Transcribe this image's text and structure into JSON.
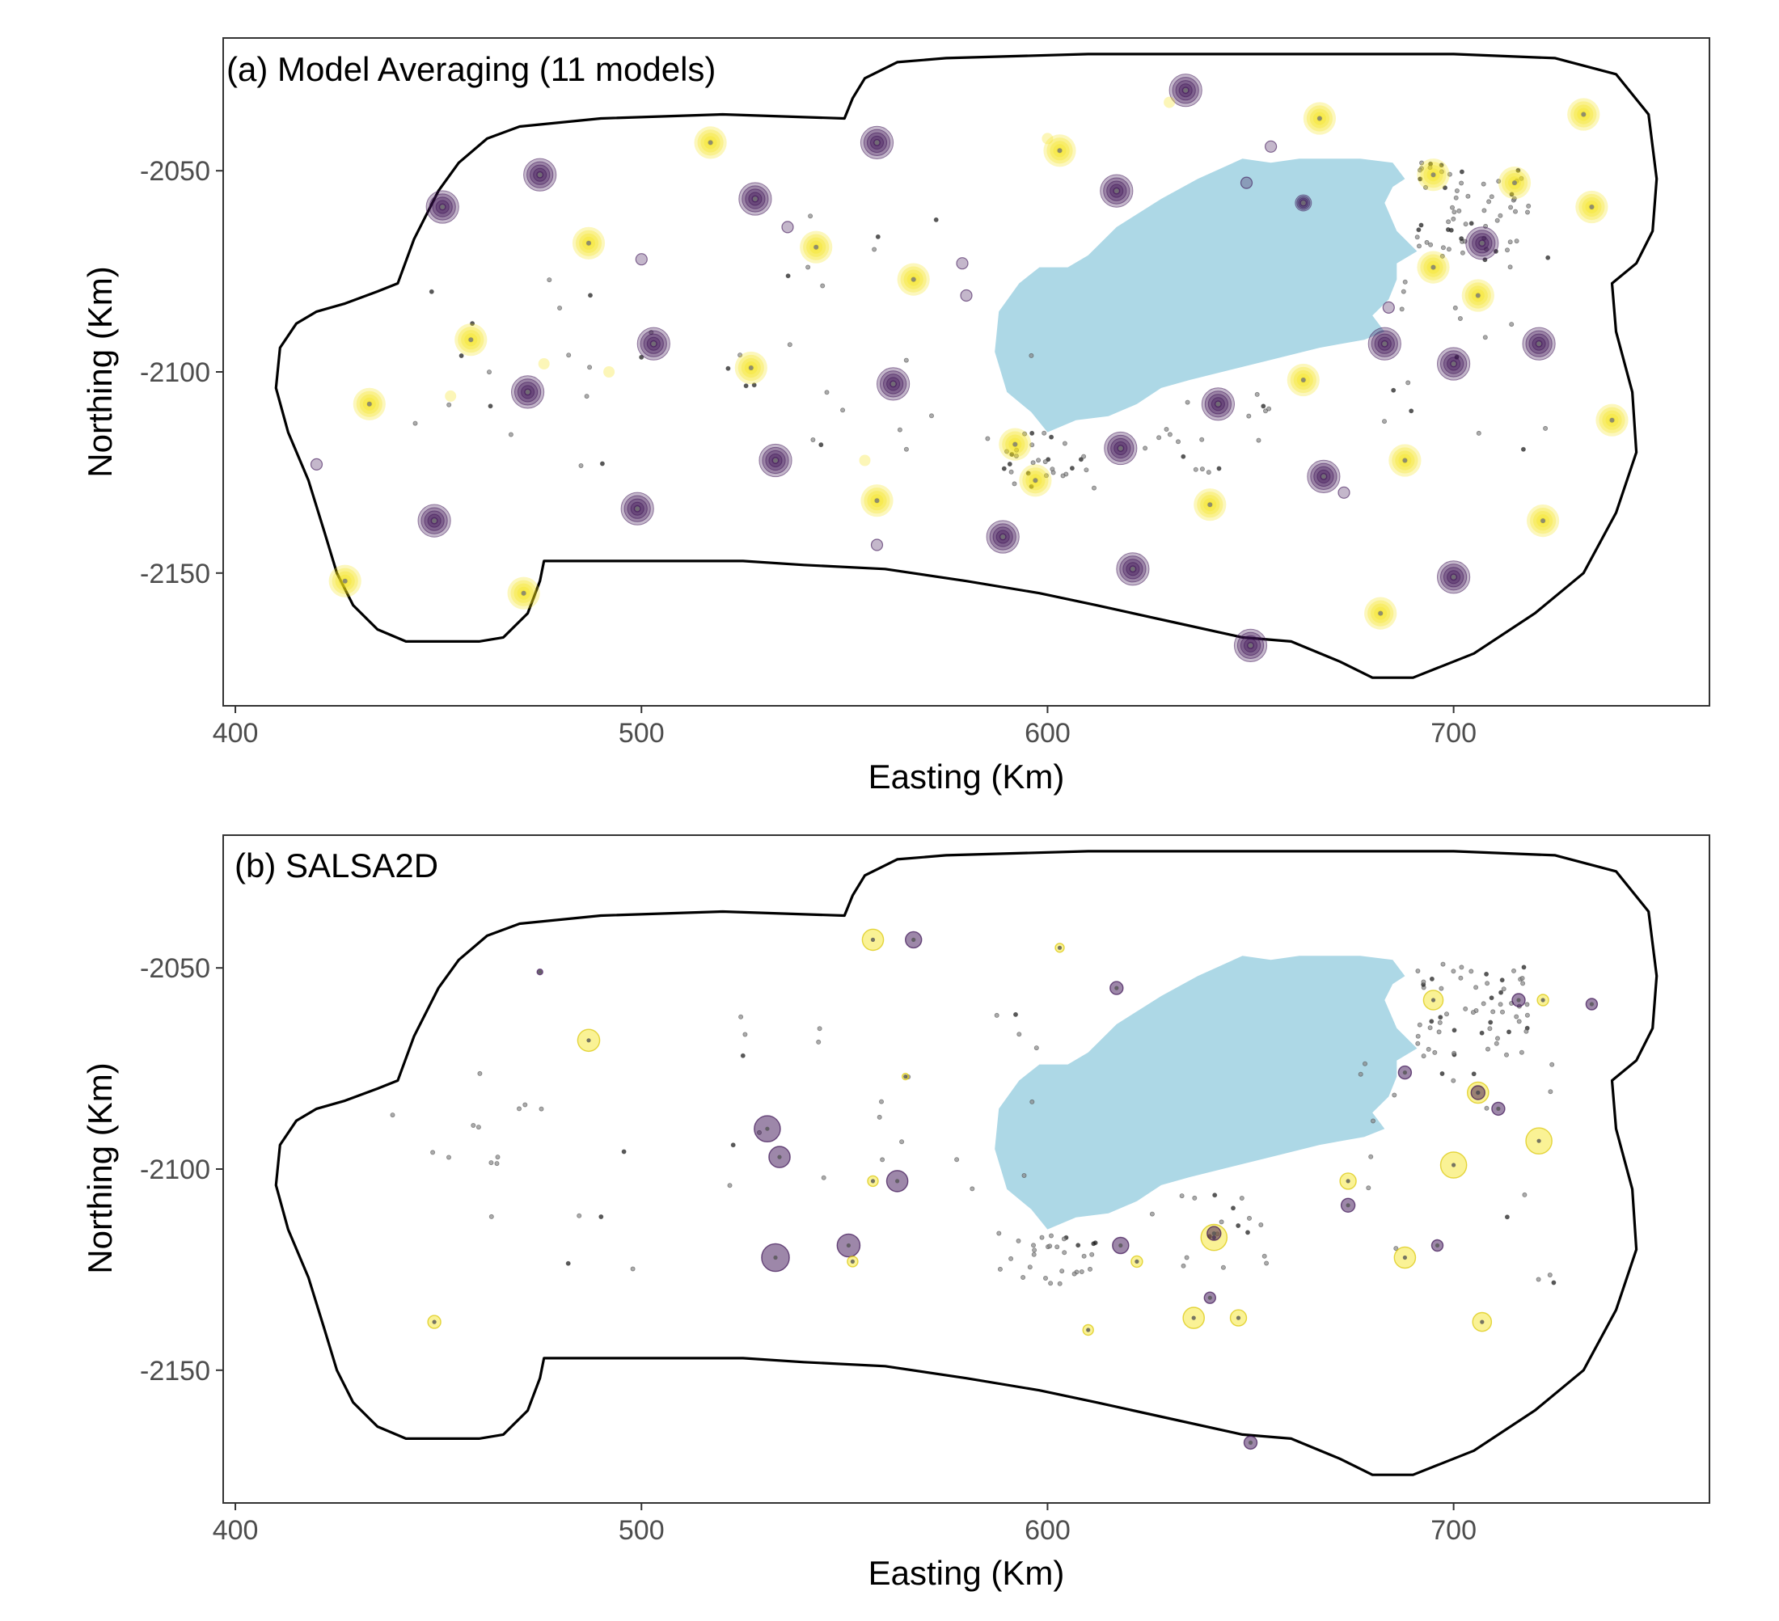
{
  "chart_data": [
    {
      "type": "scatter",
      "title": "(a) Model Averaging (11 models)",
      "xlabel": "Easting (Km)",
      "ylabel": "Northing (Km)",
      "xlim": [
        397,
        763
      ],
      "ylim": [
        -2183,
        -2017
      ],
      "xticks": [
        "400",
        "500",
        "600",
        "700"
      ],
      "yticks": [
        "-2050",
        "-2100",
        "-2150"
      ],
      "grid": false,
      "legend": "none",
      "colors": {
        "low": "#3b0f53",
        "high": "#f5e213",
        "boundary": "#000000",
        "water": "#add8e6",
        "obs": "#333333"
      },
      "boundary": [
        [
          442,
          -2167
        ],
        [
          435,
          -2164
        ],
        [
          429,
          -2158
        ],
        [
          425,
          -2150
        ],
        [
          422,
          -2140
        ],
        [
          418,
          -2127
        ],
        [
          413,
          -2115
        ],
        [
          410,
          -2104
        ],
        [
          411,
          -2094
        ],
        [
          415,
          -2088
        ],
        [
          420,
          -2085
        ],
        [
          427,
          -2083
        ],
        [
          435,
          -2080
        ],
        [
          440,
          -2078
        ],
        [
          444,
          -2067
        ],
        [
          450,
          -2055
        ],
        [
          455,
          -2048
        ],
        [
          462,
          -2042
        ],
        [
          470,
          -2039
        ],
        [
          490,
          -2037
        ],
        [
          520,
          -2036
        ],
        [
          550,
          -2037
        ],
        [
          552,
          -2032
        ],
        [
          555,
          -2027
        ],
        [
          563,
          -2023
        ],
        [
          575,
          -2022
        ],
        [
          610,
          -2021
        ],
        [
          660,
          -2021
        ],
        [
          700,
          -2021
        ],
        [
          725,
          -2022
        ],
        [
          740,
          -2026
        ],
        [
          748,
          -2036
        ],
        [
          750,
          -2052
        ],
        [
          749,
          -2065
        ],
        [
          745,
          -2073
        ],
        [
          739,
          -2078
        ],
        [
          740,
          -2090
        ],
        [
          744,
          -2105
        ],
        [
          745,
          -2120
        ],
        [
          740,
          -2135
        ],
        [
          732,
          -2150
        ],
        [
          720,
          -2160
        ],
        [
          705,
          -2170
        ],
        [
          690,
          -2176
        ],
        [
          680,
          -2176
        ],
        [
          672,
          -2172
        ],
        [
          660,
          -2167
        ],
        [
          648,
          -2166
        ],
        [
          630,
          -2162
        ],
        [
          612,
          -2158
        ],
        [
          598,
          -2155
        ],
        [
          580,
          -2152
        ],
        [
          560,
          -2149
        ],
        [
          540,
          -2148
        ],
        [
          525,
          -2147
        ],
        [
          510,
          -2147
        ],
        [
          495,
          -2147
        ],
        [
          476,
          -2147
        ],
        [
          475,
          -2152
        ],
        [
          472,
          -2160
        ],
        [
          466,
          -2166
        ],
        [
          460,
          -2167
        ]
      ],
      "water": [
        [
          600,
          -2115
        ],
        [
          607,
          -2112
        ],
        [
          615,
          -2111
        ],
        [
          622,
          -2108
        ],
        [
          628,
          -2104
        ],
        [
          635,
          -2102
        ],
        [
          643,
          -2100
        ],
        [
          655,
          -2097
        ],
        [
          667,
          -2094
        ],
        [
          678,
          -2092
        ],
        [
          683,
          -2090
        ],
        [
          680,
          -2086
        ],
        [
          684,
          -2082
        ],
        [
          686,
          -2077
        ],
        [
          686,
          -2073
        ],
        [
          691,
          -2070
        ],
        [
          686,
          -2065
        ],
        [
          683,
          -2058
        ],
        [
          685,
          -2054
        ],
        [
          688,
          -2052
        ],
        [
          685,
          -2048
        ],
        [
          677,
          -2047
        ],
        [
          662,
          -2047
        ],
        [
          655,
          -2048
        ],
        [
          648,
          -2047
        ],
        [
          637,
          -2052
        ],
        [
          628,
          -2057
        ],
        [
          617,
          -2064
        ],
        [
          610,
          -2071
        ],
        [
          605,
          -2074
        ],
        [
          598,
          -2074
        ],
        [
          593,
          -2078
        ],
        [
          588,
          -2085
        ],
        [
          587,
          -2095
        ],
        [
          590,
          -2105
        ],
        [
          596,
          -2110
        ]
      ],
      "circles": [
        {
          "x": 634,
          "y": -2030,
          "v": 0,
          "r": 4
        },
        {
          "x": 667,
          "y": -2037,
          "v": 1,
          "r": 4
        },
        {
          "x": 732,
          "y": -2036,
          "v": 1,
          "r": 4
        },
        {
          "x": 517,
          "y": -2043,
          "v": 1,
          "r": 4
        },
        {
          "x": 558,
          "y": -2043,
          "v": 0,
          "r": 4
        },
        {
          "x": 603,
          "y": -2045,
          "v": 1,
          "r": 4
        },
        {
          "x": 475,
          "y": -2051,
          "v": 0,
          "r": 4
        },
        {
          "x": 451,
          "y": -2059,
          "v": 0,
          "r": 4
        },
        {
          "x": 528,
          "y": -2057,
          "v": 0,
          "r": 4
        },
        {
          "x": 617,
          "y": -2055,
          "v": 0,
          "r": 4
        },
        {
          "x": 663,
          "y": -2058,
          "v": 0,
          "r": 2
        },
        {
          "x": 695,
          "y": -2051,
          "v": 1,
          "r": 4
        },
        {
          "x": 715,
          "y": -2053,
          "v": 1,
          "r": 4
        },
        {
          "x": 734,
          "y": -2059,
          "v": 1,
          "r": 4
        },
        {
          "x": 487,
          "y": -2068,
          "v": 1,
          "r": 4
        },
        {
          "x": 543,
          "y": -2069,
          "v": 1,
          "r": 4
        },
        {
          "x": 707,
          "y": -2068,
          "v": 0,
          "r": 4
        },
        {
          "x": 567,
          "y": -2077,
          "v": 1,
          "r": 4
        },
        {
          "x": 695,
          "y": -2074,
          "v": 1,
          "r": 4
        },
        {
          "x": 706,
          "y": -2081,
          "v": 1,
          "r": 4
        },
        {
          "x": 458,
          "y": -2092,
          "v": 1,
          "r": 4
        },
        {
          "x": 503,
          "y": -2093,
          "v": 0,
          "r": 4
        },
        {
          "x": 683,
          "y": -2093,
          "v": 0,
          "r": 4
        },
        {
          "x": 721,
          "y": -2093,
          "v": 0,
          "r": 4
        },
        {
          "x": 527,
          "y": -2099,
          "v": 1,
          "r": 4
        },
        {
          "x": 700,
          "y": -2098,
          "v": 0,
          "r": 4
        },
        {
          "x": 562,
          "y": -2103,
          "v": 0,
          "r": 4
        },
        {
          "x": 663,
          "y": -2102,
          "v": 1,
          "r": 4
        },
        {
          "x": 472,
          "y": -2105,
          "v": 0,
          "r": 4
        },
        {
          "x": 433,
          "y": -2108,
          "v": 1,
          "r": 4
        },
        {
          "x": 642,
          "y": -2108,
          "v": 0,
          "r": 4
        },
        {
          "x": 739,
          "y": -2112,
          "v": 1,
          "r": 4
        },
        {
          "x": 592,
          "y": -2118,
          "v": 1,
          "r": 4
        },
        {
          "x": 618,
          "y": -2119,
          "v": 0,
          "r": 4
        },
        {
          "x": 533,
          "y": -2122,
          "v": 0,
          "r": 4
        },
        {
          "x": 597,
          "y": -2127,
          "v": 1,
          "r": 4
        },
        {
          "x": 688,
          "y": -2122,
          "v": 1,
          "r": 4
        },
        {
          "x": 668,
          "y": -2126,
          "v": 0,
          "r": 4
        },
        {
          "x": 640,
          "y": -2133,
          "v": 1,
          "r": 4
        },
        {
          "x": 558,
          "y": -2132,
          "v": 1,
          "r": 4
        },
        {
          "x": 499,
          "y": -2134,
          "v": 0,
          "r": 4
        },
        {
          "x": 449,
          "y": -2137,
          "v": 0,
          "r": 4
        },
        {
          "x": 722,
          "y": -2137,
          "v": 1,
          "r": 4
        },
        {
          "x": 589,
          "y": -2141,
          "v": 0,
          "r": 4
        },
        {
          "x": 621,
          "y": -2149,
          "v": 0,
          "r": 4
        },
        {
          "x": 700,
          "y": -2151,
          "v": 0,
          "r": 4
        },
        {
          "x": 427,
          "y": -2152,
          "v": 1,
          "r": 4
        },
        {
          "x": 471,
          "y": -2155,
          "v": 1,
          "r": 4
        },
        {
          "x": 682,
          "y": -2160,
          "v": 1,
          "r": 4
        },
        {
          "x": 650,
          "y": -2168,
          "v": 0,
          "r": 4
        }
      ],
      "small_markers": [
        {
          "x": 536,
          "y": -2064,
          "v": 0
        },
        {
          "x": 500,
          "y": -2072,
          "v": 0
        },
        {
          "x": 649,
          "y": -2053,
          "v": 0
        },
        {
          "x": 684,
          "y": -2084,
          "v": 0
        },
        {
          "x": 673,
          "y": -2130,
          "v": 0
        },
        {
          "x": 558,
          "y": -2143,
          "v": 0
        },
        {
          "x": 476,
          "y": -2098,
          "v": 1
        },
        {
          "x": 492,
          "y": -2100,
          "v": 1
        },
        {
          "x": 453,
          "y": -2106,
          "v": 1
        },
        {
          "x": 600,
          "y": -2042,
          "v": 1
        },
        {
          "x": 630,
          "y": -2033,
          "v": 1
        },
        {
          "x": 555,
          "y": -2122,
          "v": 1
        },
        {
          "x": 579,
          "y": -2073,
          "v": 0
        },
        {
          "x": 655,
          "y": -2044,
          "v": 0
        },
        {
          "x": 420,
          "y": -2123,
          "v": 0
        },
        {
          "x": 580,
          "y": -2081,
          "v": 0
        }
      ]
    },
    {
      "type": "scatter",
      "title": "(b) SALSA2D",
      "xlabel": "Easting (Km)",
      "ylabel": "Northing (Km)",
      "xlim": [
        397,
        763
      ],
      "ylim": [
        -2183,
        -2017
      ],
      "xticks": [
        "400",
        "500",
        "600",
        "700"
      ],
      "yticks": [
        "-2050",
        "-2100",
        "-2150"
      ],
      "grid": false,
      "legend": "none",
      "colors": {
        "low": "#3b0f53",
        "high": "#f5e213",
        "boundary": "#000000",
        "water": "#add8e6",
        "obs": "#333333"
      },
      "circles": [
        {
          "x": 557,
          "y": -2043,
          "v": 1,
          "r": 2.6
        },
        {
          "x": 567,
          "y": -2043,
          "v": 0,
          "r": 2
        },
        {
          "x": 475,
          "y": -2051,
          "v": 0,
          "r": 0.7
        },
        {
          "x": 603,
          "y": -2045,
          "v": 1,
          "r": 1.1
        },
        {
          "x": 617,
          "y": -2055,
          "v": 0,
          "r": 1.6
        },
        {
          "x": 487,
          "y": -2068,
          "v": 1,
          "r": 2.7
        },
        {
          "x": 695,
          "y": -2058,
          "v": 1,
          "r": 2.4
        },
        {
          "x": 716,
          "y": -2058,
          "v": 0,
          "r": 1.6
        },
        {
          "x": 722,
          "y": -2058,
          "v": 1,
          "r": 1.4
        },
        {
          "x": 734,
          "y": -2059,
          "v": 0,
          "r": 1.4
        },
        {
          "x": 565,
          "y": -2077,
          "v": 1,
          "r": 0.8
        },
        {
          "x": 688,
          "y": -2076,
          "v": 0,
          "r": 1.6
        },
        {
          "x": 706,
          "y": -2081,
          "v": 1,
          "r": 2.6
        },
        {
          "x": 706,
          "y": -2081,
          "v": 0,
          "r": 1.7
        },
        {
          "x": 711,
          "y": -2085,
          "v": 0,
          "r": 1.6
        },
        {
          "x": 531,
          "y": -2090,
          "v": 0,
          "r": 3.2
        },
        {
          "x": 534,
          "y": -2097,
          "v": 0,
          "r": 2.6
        },
        {
          "x": 721,
          "y": -2093,
          "v": 1,
          "r": 3.2
        },
        {
          "x": 700,
          "y": -2099,
          "v": 1,
          "r": 3.2
        },
        {
          "x": 563,
          "y": -2103,
          "v": 0,
          "r": 2.6
        },
        {
          "x": 557,
          "y": -2103,
          "v": 1,
          "r": 1.3
        },
        {
          "x": 674,
          "y": -2103,
          "v": 1,
          "r": 2
        },
        {
          "x": 674,
          "y": -2109,
          "v": 0,
          "r": 1.7
        },
        {
          "x": 641,
          "y": -2117,
          "v": 1,
          "r": 3.2
        },
        {
          "x": 641,
          "y": -2116,
          "v": 0,
          "r": 1.7
        },
        {
          "x": 618,
          "y": -2119,
          "v": 0,
          "r": 2
        },
        {
          "x": 551,
          "y": -2119,
          "v": 0,
          "r": 2.8
        },
        {
          "x": 552,
          "y": -2123,
          "v": 1,
          "r": 1.3
        },
        {
          "x": 696,
          "y": -2119,
          "v": 0,
          "r": 1.4
        },
        {
          "x": 688,
          "y": -2122,
          "v": 1,
          "r": 2.6
        },
        {
          "x": 622,
          "y": -2123,
          "v": 1,
          "r": 1.4
        },
        {
          "x": 533,
          "y": -2122,
          "v": 0,
          "r": 3.4
        },
        {
          "x": 640,
          "y": -2132,
          "v": 0,
          "r": 1.4
        },
        {
          "x": 636,
          "y": -2137,
          "v": 1,
          "r": 2.6
        },
        {
          "x": 647,
          "y": -2137,
          "v": 1,
          "r": 2
        },
        {
          "x": 707,
          "y": -2138,
          "v": 1,
          "r": 2.3
        },
        {
          "x": 449,
          "y": -2138,
          "v": 1,
          "r": 1.6
        },
        {
          "x": 610,
          "y": -2140,
          "v": 1,
          "r": 1.3
        },
        {
          "x": 650,
          "y": -2168,
          "v": 0,
          "r": 1.6
        }
      ]
    }
  ]
}
